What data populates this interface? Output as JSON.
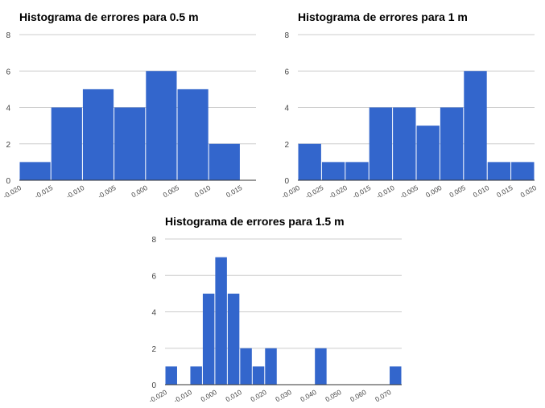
{
  "chart_data": [
    {
      "type": "bar",
      "title": "Histograma de errores para 0.5 m",
      "xlabel": "",
      "ylabel": "",
      "ylim": [
        0,
        8
      ],
      "y_ticks": [
        "0",
        "2",
        "4",
        "6",
        "8"
      ],
      "x_range": [
        -0.02,
        0.0175
      ],
      "x_ticks": [
        "-0.020",
        "-0.015",
        "-0.010",
        "-0.005",
        "0.000",
        "0.005",
        "0.010",
        "0.015"
      ],
      "bins": [
        {
          "start": -0.02,
          "end": -0.015,
          "count": 1
        },
        {
          "start": -0.015,
          "end": -0.01,
          "count": 4
        },
        {
          "start": -0.01,
          "end": -0.005,
          "count": 5
        },
        {
          "start": -0.005,
          "end": 0.0,
          "count": 4
        },
        {
          "start": 0.0,
          "end": 0.005,
          "count": 6
        },
        {
          "start": 0.005,
          "end": 0.01,
          "count": 5
        },
        {
          "start": 0.01,
          "end": 0.015,
          "count": 2
        }
      ],
      "grid": true,
      "color": "#3366cc"
    },
    {
      "type": "bar",
      "title": "Histograma de errores para 1 m",
      "xlabel": "",
      "ylabel": "",
      "ylim": [
        0,
        8
      ],
      "y_ticks": [
        "0",
        "2",
        "4",
        "6",
        "8"
      ],
      "x_range": [
        -0.03,
        0.02
      ],
      "x_ticks": [
        "-0.030",
        "-0.025",
        "-0.020",
        "-0.015",
        "-0.010",
        "-0.005",
        "0.000",
        "0.005",
        "0.010",
        "0.015",
        "0.020"
      ],
      "bins": [
        {
          "start": -0.03,
          "end": -0.025,
          "count": 2
        },
        {
          "start": -0.025,
          "end": -0.02,
          "count": 1
        },
        {
          "start": -0.02,
          "end": -0.015,
          "count": 1
        },
        {
          "start": -0.015,
          "end": -0.01,
          "count": 4
        },
        {
          "start": -0.01,
          "end": -0.005,
          "count": 4
        },
        {
          "start": -0.005,
          "end": 0.0,
          "count": 3
        },
        {
          "start": 0.0,
          "end": 0.005,
          "count": 4
        },
        {
          "start": 0.005,
          "end": 0.01,
          "count": 6
        },
        {
          "start": 0.01,
          "end": 0.015,
          "count": 1
        },
        {
          "start": 0.015,
          "end": 0.02,
          "count": 1
        }
      ],
      "grid": true,
      "color": "#3366cc"
    },
    {
      "type": "bar",
      "title": "Histograma de errores para 1.5 m",
      "xlabel": "",
      "ylabel": "",
      "ylim": [
        0,
        8
      ],
      "y_ticks": [
        "0",
        "2",
        "4",
        "6",
        "8"
      ],
      "x_range": [
        -0.02,
        0.075
      ],
      "x_ticks": [
        "-0.020",
        "-0.010",
        "0.000",
        "0.010",
        "0.020",
        "0.030",
        "0.040",
        "0.050",
        "0.060",
        "0.070"
      ],
      "bins": [
        {
          "start": -0.02,
          "end": -0.015,
          "count": 1
        },
        {
          "start": -0.015,
          "end": -0.01,
          "count": 0
        },
        {
          "start": -0.01,
          "end": -0.005,
          "count": 1
        },
        {
          "start": -0.005,
          "end": 0.0,
          "count": 5
        },
        {
          "start": 0.0,
          "end": 0.005,
          "count": 7
        },
        {
          "start": 0.005,
          "end": 0.01,
          "count": 5
        },
        {
          "start": 0.01,
          "end": 0.015,
          "count": 2
        },
        {
          "start": 0.015,
          "end": 0.02,
          "count": 1
        },
        {
          "start": 0.02,
          "end": 0.025,
          "count": 2
        },
        {
          "start": 0.025,
          "end": 0.03,
          "count": 0
        },
        {
          "start": 0.03,
          "end": 0.035,
          "count": 0
        },
        {
          "start": 0.035,
          "end": 0.04,
          "count": 0
        },
        {
          "start": 0.04,
          "end": 0.045,
          "count": 2
        },
        {
          "start": 0.045,
          "end": 0.05,
          "count": 0
        },
        {
          "start": 0.05,
          "end": 0.055,
          "count": 0
        },
        {
          "start": 0.055,
          "end": 0.06,
          "count": 0
        },
        {
          "start": 0.06,
          "end": 0.065,
          "count": 0
        },
        {
          "start": 0.065,
          "end": 0.07,
          "count": 0
        },
        {
          "start": 0.07,
          "end": 0.075,
          "count": 1
        }
      ],
      "grid": true,
      "color": "#3366cc"
    }
  ]
}
